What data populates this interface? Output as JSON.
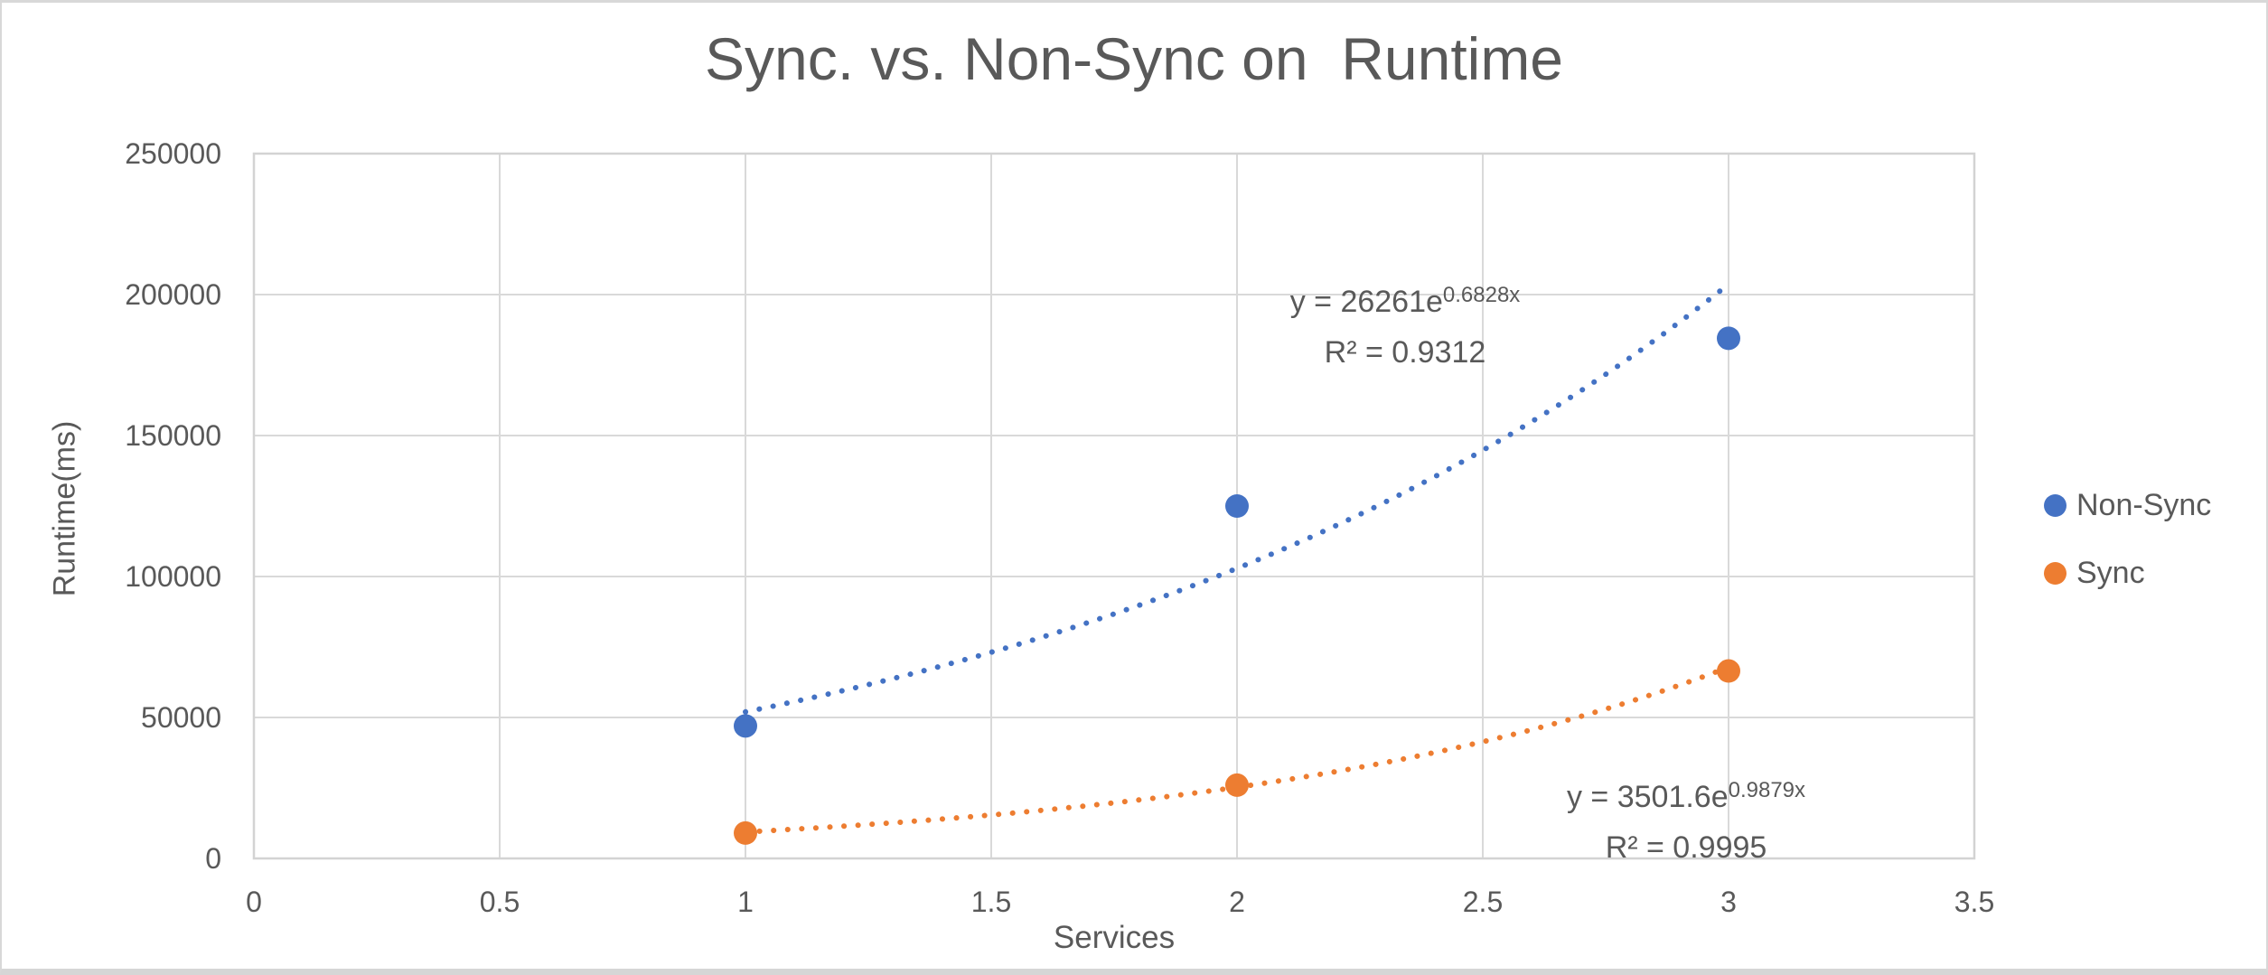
{
  "window": {
    "background": "#ffffff",
    "frame_border_color": "#d8d8d8"
  },
  "chart_data": {
    "type": "scatter",
    "title": "Sync. vs. Non-Sync on  Runtime",
    "xlabel": "Services",
    "ylabel": "Runtime(ms)",
    "xlim": [
      0,
      3.5
    ],
    "ylim": [
      0,
      250000
    ],
    "x_ticks": [
      0,
      0.5,
      1,
      1.5,
      2,
      2.5,
      3,
      3.5
    ],
    "x_tick_labels": [
      "0",
      "0.5",
      "1",
      "1.5",
      "2",
      "2.5",
      "3",
      "3.5"
    ],
    "y_ticks": [
      0,
      50000,
      100000,
      150000,
      200000,
      250000
    ],
    "y_tick_labels": [
      "0",
      "50000",
      "100000",
      "150000",
      "200000",
      "250000"
    ],
    "grid": true,
    "legend_position": "right",
    "series": [
      {
        "name": "Non-Sync",
        "color": "#4472C4",
        "marker": "circle",
        "x": [
          1,
          2,
          3
        ],
        "y": [
          47000,
          125000,
          184500
        ],
        "trendline": {
          "type": "exponential",
          "a": 26261,
          "b": 0.6828,
          "range": [
            1,
            3
          ],
          "style": "dotted",
          "equation_base": "y = 26261e",
          "equation_exponent": "0.6828x",
          "r_squared_label": "R² = 0.9312"
        }
      },
      {
        "name": "Sync",
        "color": "#ED7D31",
        "marker": "circle",
        "x": [
          1,
          2,
          3
        ],
        "y": [
          9000,
          26000,
          66500
        ],
        "trendline": {
          "type": "exponential",
          "a": 3501.6,
          "b": 0.9879,
          "range": [
            1,
            3
          ],
          "style": "dotted",
          "equation_base": "y = 3501.6e",
          "equation_exponent": "0.9879x",
          "r_squared_label": "R² = 0.9995"
        }
      }
    ],
    "colors": {
      "gridline": "#D9D9D9",
      "plot_border": "#D3D3D3",
      "axis_text": "#595959"
    }
  }
}
